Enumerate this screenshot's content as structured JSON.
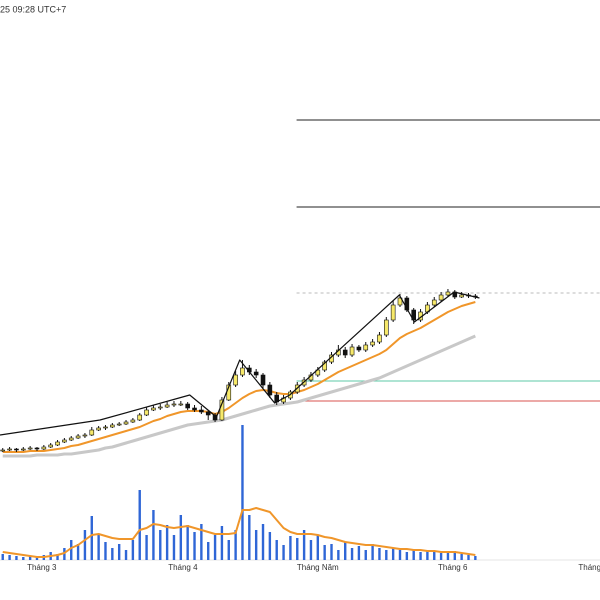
{
  "header": {
    "time": "25 09:28 UTC+7"
  },
  "chart_data": {
    "type": "candlestick",
    "xlim": [
      -0.4,
      87.2
    ],
    "xticks": [
      {
        "value": 5.7,
        "label": "Tháng 3"
      },
      {
        "value": 26.3,
        "label": "Tháng 4"
      },
      {
        "value": 46,
        "label": "Tháng Năm"
      },
      {
        "value": 65.7,
        "label": "Tháng 6"
      },
      {
        "value": 85.7,
        "label": "Tháng"
      }
    ],
    "ylim": [
      0,
      47
    ],
    "up_color": "#f7e96a",
    "down_color": "#111111",
    "ohlc": [
      [
        1.9,
        2.2,
        1.8,
        2.0
      ],
      [
        2.0,
        2.3,
        1.9,
        2.1
      ],
      [
        2.1,
        2.2,
        1.8,
        2.0
      ],
      [
        2.0,
        2.3,
        1.9,
        2.1
      ],
      [
        2.1,
        2.4,
        2.0,
        2.2
      ],
      [
        2.2,
        2.3,
        1.9,
        2.1
      ],
      [
        2.1,
        2.5,
        2.0,
        2.3
      ],
      [
        2.3,
        2.7,
        2.2,
        2.5
      ],
      [
        2.5,
        3.0,
        2.4,
        2.8
      ],
      [
        2.8,
        3.2,
        2.7,
        3.0
      ],
      [
        3.0,
        3.4,
        2.9,
        3.2
      ],
      [
        3.2,
        3.6,
        3.1,
        3.4
      ],
      [
        3.4,
        3.7,
        3.2,
        3.5
      ],
      [
        3.5,
        4.3,
        3.4,
        4.0
      ],
      [
        4.0,
        4.4,
        3.9,
        4.2
      ],
      [
        4.2,
        4.5,
        4.0,
        4.3
      ],
      [
        4.3,
        4.7,
        4.2,
        4.5
      ],
      [
        4.5,
        4.8,
        4.4,
        4.6
      ],
      [
        4.6,
        5.0,
        4.5,
        4.8
      ],
      [
        4.8,
        5.2,
        4.7,
        5.0
      ],
      [
        5.0,
        5.7,
        4.9,
        5.5
      ],
      [
        5.5,
        6.3,
        5.4,
        6.0
      ],
      [
        6.0,
        6.5,
        5.9,
        6.2
      ],
      [
        6.2,
        6.6,
        6.0,
        6.3
      ],
      [
        6.3,
        6.8,
        6.2,
        6.5
      ],
      [
        6.5,
        6.9,
        6.3,
        6.6
      ],
      [
        6.6,
        6.9,
        6.4,
        6.6
      ],
      [
        6.6,
        6.8,
        6.0,
        6.2
      ],
      [
        6.2,
        6.5,
        5.8,
        6.0
      ],
      [
        6.0,
        6.4,
        5.6,
        5.8
      ],
      [
        5.8,
        6.0,
        5.0,
        5.5
      ],
      [
        5.5,
        5.7,
        4.8,
        5.0
      ],
      [
        5.0,
        7.3,
        4.9,
        7.0
      ],
      [
        7.0,
        8.8,
        6.9,
        8.5
      ],
      [
        8.5,
        9.9,
        8.3,
        9.5
      ],
      [
        9.5,
        11.0,
        9.3,
        10.2
      ],
      [
        10.2,
        10.5,
        9.5,
        9.8
      ],
      [
        9.8,
        10.1,
        9.2,
        9.5
      ],
      [
        9.5,
        9.7,
        8.2,
        8.5
      ],
      [
        8.5,
        8.8,
        7.2,
        7.5
      ],
      [
        7.5,
        7.8,
        6.5,
        6.8
      ],
      [
        6.8,
        7.5,
        6.6,
        7.2
      ],
      [
        7.2,
        8.0,
        7.0,
        7.8
      ],
      [
        7.8,
        8.8,
        7.6,
        8.5
      ],
      [
        8.5,
        9.3,
        8.3,
        9.0
      ],
      [
        9.0,
        9.8,
        8.8,
        9.5
      ],
      [
        9.5,
        10.3,
        9.3,
        10.0
      ],
      [
        10.0,
        11.0,
        9.8,
        10.8
      ],
      [
        10.8,
        11.8,
        10.6,
        11.5
      ],
      [
        11.5,
        12.5,
        11.3,
        12.0
      ],
      [
        12.0,
        12.3,
        11.2,
        11.5
      ],
      [
        11.5,
        12.6,
        11.3,
        12.3
      ],
      [
        12.3,
        12.5,
        11.8,
        12.0
      ],
      [
        12.0,
        12.8,
        11.8,
        12.5
      ],
      [
        12.5,
        13.1,
        12.3,
        12.8
      ],
      [
        12.8,
        13.8,
        12.6,
        13.5
      ],
      [
        13.5,
        15.3,
        13.3,
        15.0
      ],
      [
        15.0,
        16.9,
        14.8,
        16.5
      ],
      [
        16.5,
        17.6,
        16.3,
        17.2
      ],
      [
        17.2,
        17.4,
        15.8,
        16.0
      ],
      [
        16.0,
        16.2,
        14.6,
        15.0
      ],
      [
        15.0,
        16.1,
        14.8,
        15.8
      ],
      [
        15.8,
        16.8,
        15.6,
        16.5
      ],
      [
        16.5,
        17.3,
        16.3,
        17.0
      ],
      [
        17.0,
        17.8,
        16.8,
        17.5
      ],
      [
        17.5,
        18.1,
        17.3,
        17.8
      ],
      [
        17.8,
        18.0,
        17.1,
        17.3
      ],
      [
        17.3,
        17.8,
        17.2,
        17.5
      ],
      [
        17.5,
        17.7,
        17.2,
        17.4
      ],
      [
        17.4,
        17.6,
        17.1,
        17.3
      ]
    ],
    "ma_fast": {
      "color": "#f0962a",
      "values": [
        1.8,
        1.8,
        1.8,
        1.8,
        1.9,
        1.9,
        1.9,
        2.0,
        2.1,
        2.2,
        2.4,
        2.5,
        2.7,
        2.9,
        3.1,
        3.3,
        3.5,
        3.7,
        3.9,
        4.1,
        4.3,
        4.6,
        4.9,
        5.1,
        5.4,
        5.6,
        5.8,
        5.9,
        5.9,
        5.9,
        5.8,
        5.6,
        5.8,
        6.2,
        6.7,
        7.2,
        7.6,
        7.9,
        8.0,
        7.9,
        7.7,
        7.6,
        7.6,
        7.8,
        8.0,
        8.3,
        8.6,
        9.0,
        9.4,
        9.8,
        10.1,
        10.4,
        10.7,
        11.0,
        11.3,
        11.6,
        12.0,
        12.6,
        13.2,
        13.6,
        13.9,
        14.2,
        14.6,
        15.0,
        15.4,
        15.8,
        16.1,
        16.4,
        16.6,
        16.8
      ]
    },
    "ma_slow": {
      "color": "#c8c8c8",
      "values": [
        1.4,
        1.4,
        1.4,
        1.4,
        1.4,
        1.5,
        1.5,
        1.5,
        1.5,
        1.6,
        1.6,
        1.7,
        1.8,
        1.9,
        2.0,
        2.2,
        2.3,
        2.5,
        2.7,
        2.9,
        3.1,
        3.3,
        3.5,
        3.7,
        3.9,
        4.1,
        4.3,
        4.5,
        4.6,
        4.7,
        4.8,
        4.9,
        5.0,
        5.2,
        5.4,
        5.6,
        5.8,
        6.0,
        6.2,
        6.4,
        6.5,
        6.6,
        6.7,
        6.8,
        7.0,
        7.2,
        7.4,
        7.6,
        7.8,
        8.0,
        8.2,
        8.4,
        8.6,
        8.8,
        9.0,
        9.2,
        9.5,
        9.8,
        10.1,
        10.4,
        10.7,
        11.0,
        11.3,
        11.6,
        11.9,
        12.2,
        12.5,
        12.8,
        13.1,
        13.4
      ]
    },
    "zigzag": {
      "color": "#111111",
      "x": [
        -0.4,
        14.2,
        27.3,
        31.2,
        34.6,
        39.7,
        41.9,
        57.9,
        60.1,
        65.9,
        69.6
      ],
      "values": [
        3.5,
        5.0,
        7.5,
        5.3,
        11.0,
        6.7,
        7.5,
        17.5,
        14.8,
        17.8,
        17.2
      ]
    },
    "levels": {
      "start": 42.9,
      "values": [
        35,
        26.3,
        17.7,
        8.9,
        6.9
      ],
      "colors": [
        "#222222",
        "#222222",
        "#bbbbbb",
        "#5cc9a7",
        "#d9534f"
      ],
      "dashed": [
        false,
        false,
        true,
        false,
        false
      ]
    },
    "volume": {
      "ylim": [
        0,
        14
      ],
      "color": "#2f66d6",
      "values": [
        0.6,
        0.5,
        0.4,
        0.3,
        0.4,
        0.3,
        0.5,
        0.8,
        0.6,
        1.2,
        2.0,
        1.6,
        3.0,
        4.4,
        2.5,
        1.8,
        1.2,
        1.6,
        1.0,
        2.0,
        7.0,
        2.5,
        5.0,
        3.0,
        3.5,
        2.5,
        4.5,
        3.5,
        2.8,
        3.6,
        1.8,
        2.5,
        3.4,
        2.0,
        3.0,
        13.5,
        4.5,
        3.0,
        3.6,
        2.8,
        2.0,
        1.5,
        2.4,
        2.2,
        3.0,
        2.0,
        2.5,
        1.5,
        1.6,
        1.0,
        1.8,
        1.2,
        1.4,
        1.0,
        1.6,
        1.2,
        1.0,
        1.2,
        1.0,
        0.8,
        1.0,
        0.8,
        0.9,
        0.8,
        0.7,
        0.8,
        0.9,
        0.6,
        0.5,
        0.4
      ]
    },
    "volume_ma": {
      "color": "#f0962a",
      "values": [
        0.8,
        0.7,
        0.6,
        0.5,
        0.4,
        0.3,
        0.3,
        0.4,
        0.5,
        0.7,
        1.2,
        1.5,
        2.0,
        2.5,
        2.6,
        2.4,
        2.2,
        2.1,
        2.1,
        2.1,
        3.0,
        3.2,
        3.6,
        3.5,
        3.3,
        3.2,
        3.3,
        3.4,
        3.2,
        3.0,
        2.8,
        2.6,
        2.6,
        2.6,
        2.7,
        5.0,
        5.0,
        5.2,
        5.0,
        4.8,
        4.0,
        3.2,
        2.8,
        2.6,
        2.6,
        2.6,
        2.5,
        2.3,
        2.2,
        2.0,
        1.8,
        1.7,
        1.6,
        1.5,
        1.5,
        1.4,
        1.3,
        1.2,
        1.1,
        1.1,
        1.0,
        1.0,
        0.9,
        0.9,
        0.8,
        0.8,
        0.8,
        0.7,
        0.6,
        0.5
      ]
    }
  }
}
